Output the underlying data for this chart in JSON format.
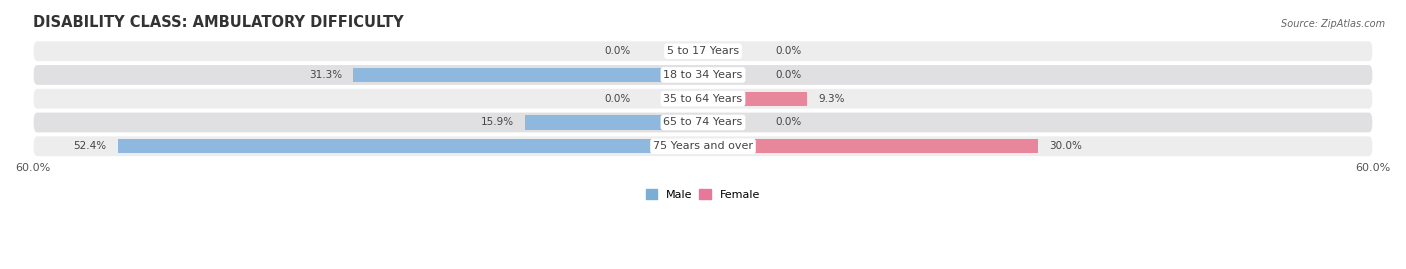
{
  "title": "DISABILITY CLASS: AMBULATORY DIFFICULTY",
  "source": "Source: ZipAtlas.com",
  "age_groups": [
    "5 to 17 Years",
    "18 to 34 Years",
    "35 to 64 Years",
    "65 to 74 Years",
    "75 Years and over"
  ],
  "male_values": [
    0.0,
    31.3,
    0.0,
    15.9,
    52.4
  ],
  "female_values": [
    0.0,
    0.0,
    9.3,
    0.0,
    30.0
  ],
  "xlim": 60.0,
  "male_color": "#8fb8de",
  "female_color": "#e8879c",
  "row_bg_color_odd": "#ededee",
  "row_bg_color_even": "#e0e0e2",
  "title_fontsize": 10.5,
  "label_fontsize": 8.0,
  "value_fontsize": 7.5,
  "axis_label_fontsize": 8.0,
  "bar_height": 0.6,
  "legend_male_color": "#7aaed4",
  "legend_female_color": "#e8789a"
}
